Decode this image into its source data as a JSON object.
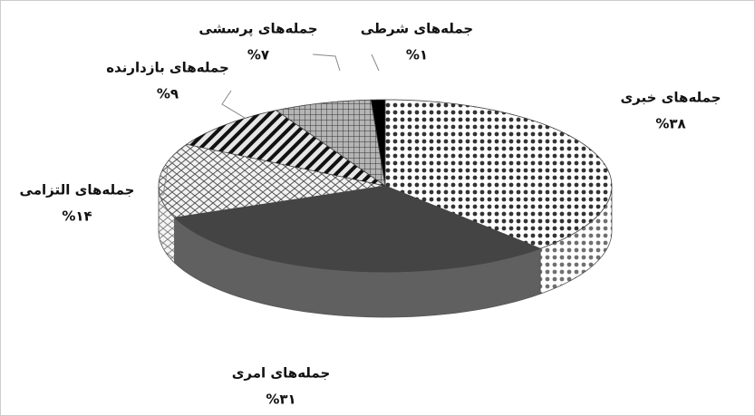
{
  "chart_data": {
    "type": "pie3d",
    "categories": [
      "جمله‌های خبری",
      "جمله‌های امری",
      "جمله‌های التزامی",
      "جمله‌های بازدارنده",
      "جمله‌های پرسشی",
      "جمله‌های شرطی"
    ],
    "values": [
      38,
      31,
      14,
      9,
      7,
      1
    ],
    "value_labels": [
      "%۳۸",
      "%۳۱",
      "%۱۴",
      "%۹",
      "%۷",
      "%۱"
    ],
    "colors": [
      "#ffffff",
      "#444444",
      "#f2f2f2",
      "#e6e6e6",
      "#b5b5b5",
      "#000000"
    ]
  }
}
